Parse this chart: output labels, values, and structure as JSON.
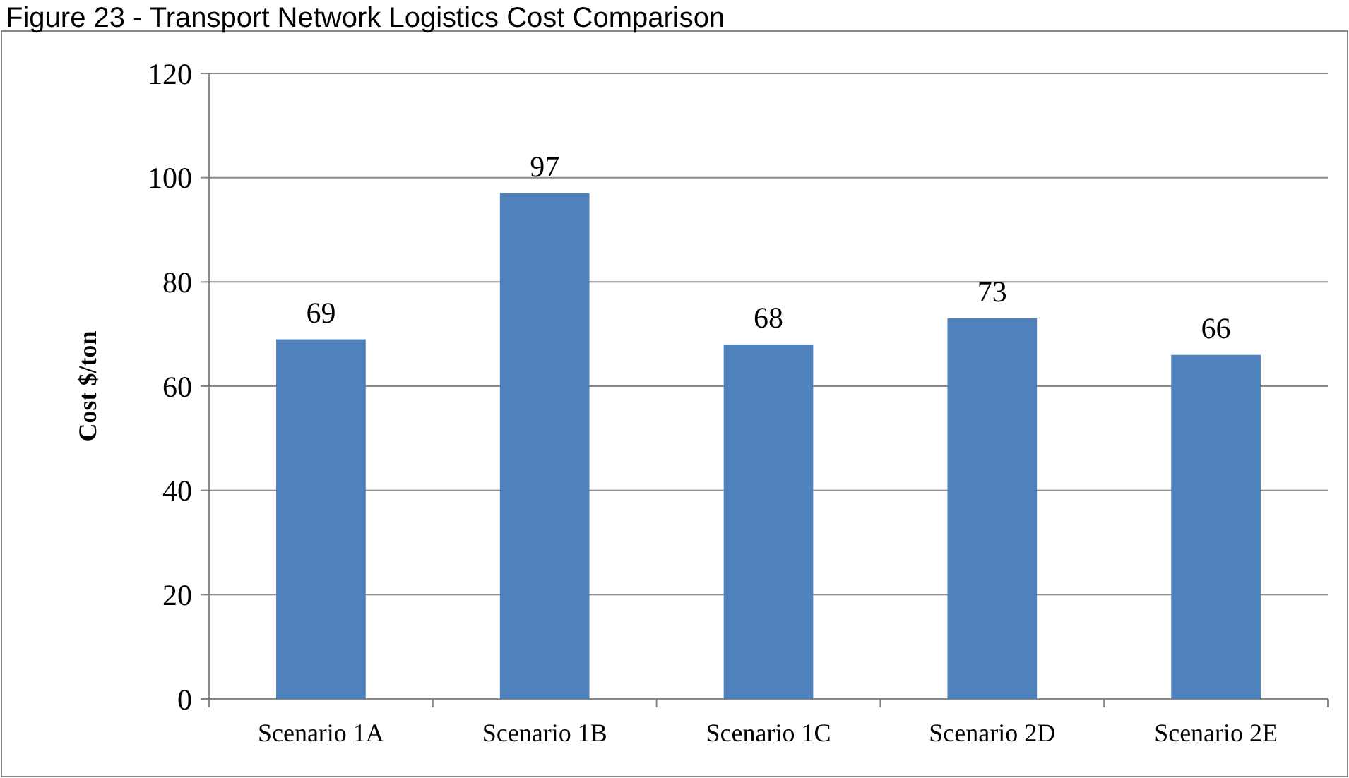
{
  "chart_data": {
    "type": "bar",
    "title": "Figure 23 - Transport Network Logistics Cost Comparison",
    "ylabel": "Cost $/ton",
    "categories": [
      "Scenario 1A",
      "Scenario 1B",
      "Scenario 1C",
      "Scenario 2D",
      "Scenario 2E"
    ],
    "values": [
      69,
      97,
      68,
      73,
      66
    ],
    "color": "#4f81bd",
    "ylim": [
      0,
      120
    ],
    "yticks": [
      0,
      20,
      40,
      60,
      80,
      100,
      120
    ],
    "grid": "y",
    "data_labels": true
  }
}
